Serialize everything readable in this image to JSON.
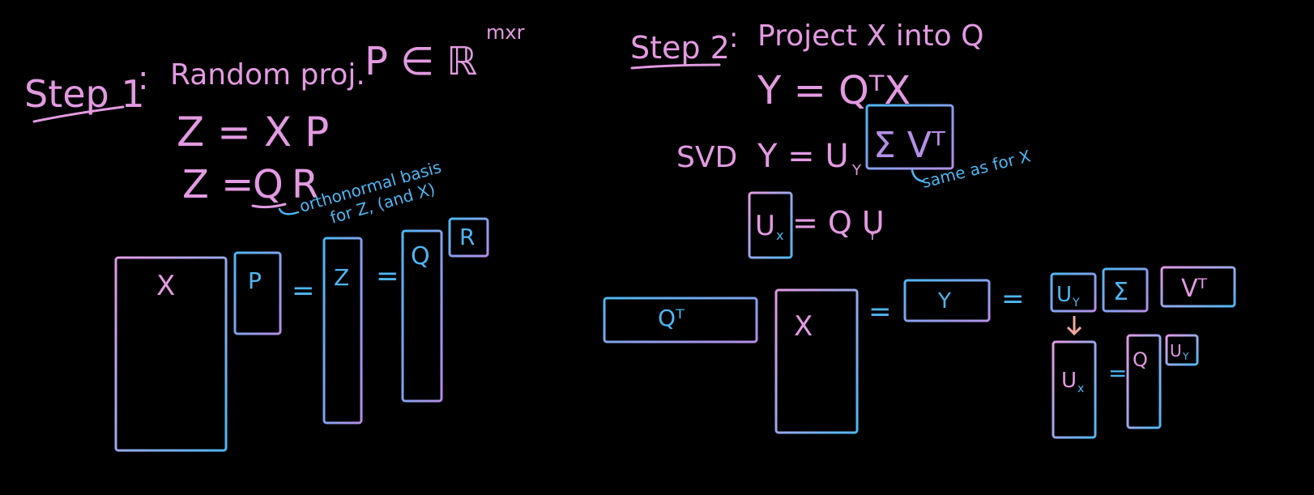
{
  "step1": {
    "title": "Step 1",
    "colon": ":",
    "desc": "Random proj.",
    "p_in_r": "P ∈ ℝ",
    "dims": "mxr",
    "eq1": "Z = X P",
    "eq2_lhs": "Z =",
    "eq2_q": "Q",
    "eq2_r": "R",
    "note_line1": "orthonormal basis",
    "note_line2": "for Z, (and X)",
    "diagram": {
      "x_label": "X",
      "p_label": "P",
      "eq1": "=",
      "z_label": "Z",
      "eq2": "=",
      "q_label": "Q",
      "r_label": "R"
    }
  },
  "step2": {
    "title": "Step 2",
    "colon": ":",
    "desc": "Project X into Q",
    "eq_y": "Y = QᵀX",
    "svd_label": "SVD",
    "svd_lhs": "Y = U",
    "svd_sub": "Y",
    "svd_box": "Σ Vᵀ",
    "svd_note": "same as for X",
    "ux_box": "U",
    "ux_sub": "x",
    "ux_rhs": "= Q U",
    "ux_rhs_sub": "Y",
    "diagram": {
      "qt_label": "Qᵀ",
      "x_label": "X",
      "eq1": "=",
      "y_label": "Y",
      "eq2": "=",
      "uy_label": "U",
      "uy_sub": "Y",
      "sigma_label": "Σ",
      "vt_label": "Vᵀ",
      "ux_label": "U",
      "ux_sub": "x",
      "eq3": "=",
      "q_label": "Q",
      "uy2_label": "U",
      "uy2_sub": "Y"
    }
  },
  "colors": {
    "pink": "#e39ae2",
    "blue": "#4fb6f2",
    "background": "#000000"
  }
}
